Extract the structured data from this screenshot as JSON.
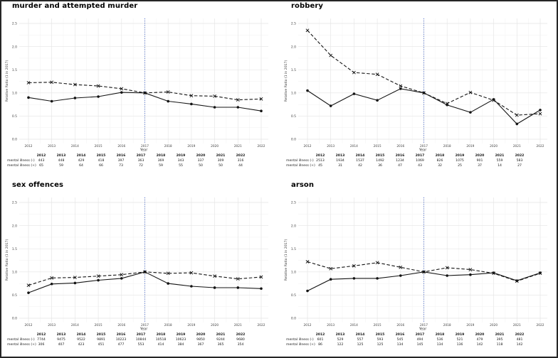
{
  "style": {
    "background": "#ffffff",
    "frame_border": "#262626",
    "line_color": "#141414",
    "vline_color": "#4466cc",
    "grid_major": "#e4e4e4",
    "grid_minor": "#f1f1f1",
    "tick_text": "#3d3d3d"
  },
  "chart_data": [
    {
      "type": "line",
      "title": "murder and attempted murder",
      "xlabel": "Year",
      "ylabel": "Relative Ratio (1 in 2017)",
      "ylim": [
        0,
        2.5
      ],
      "y_ticks": [
        0.0,
        0.5,
        1.0,
        1.5,
        2.0,
        2.5
      ],
      "x": [
        2012,
        2013,
        2014,
        2015,
        2016,
        2017,
        2018,
        2019,
        2020,
        2021,
        2022
      ],
      "reference_line_x": 2017,
      "grid": true,
      "legend": "none",
      "series": [
        {
          "name": "mental illness (-)",
          "style": "dashed",
          "marker": "x",
          "values": [
            1.22,
            1.23,
            1.18,
            1.15,
            1.09,
            1.0,
            1.02,
            0.94,
            0.93,
            0.85,
            0.87
          ]
        },
        {
          "name": "mental illness (+)",
          "style": "solid",
          "marker": "dot",
          "values": [
            0.9,
            0.82,
            0.89,
            0.92,
            1.01,
            1.0,
            0.82,
            0.76,
            0.69,
            0.69,
            0.61
          ]
        }
      ],
      "table": {
        "years": [
          2012,
          2013,
          2014,
          2015,
          2016,
          2017,
          2018,
          2019,
          2020,
          2021,
          2022
        ],
        "rows": [
          {
            "label": "mental illness (-)",
            "values": [
              443,
              448,
              429,
              418,
              397,
              363,
              369,
              343,
              337,
              309,
              316
            ]
          },
          {
            "label": "mental illness (+)",
            "values": [
              65,
              59,
              64,
              66,
              73,
              72,
              59,
              55,
              50,
              50,
              44
            ]
          }
        ]
      }
    },
    {
      "type": "line",
      "title": "robbery",
      "xlabel": "Year",
      "ylabel": "Relative Ratio (1 in 2017)",
      "ylim": [
        0,
        2.5
      ],
      "y_ticks": [
        0.0,
        0.5,
        1.0,
        1.5,
        2.0,
        2.5
      ],
      "x": [
        2012,
        2013,
        2014,
        2015,
        2016,
        2017,
        2018,
        2019,
        2020,
        2021,
        2022
      ],
      "reference_line_x": 2017,
      "grid": true,
      "legend": "none",
      "series": [
        {
          "name": "mental illness (-)",
          "style": "dashed",
          "marker": "x",
          "values": [
            2.35,
            1.81,
            1.44,
            1.4,
            1.15,
            1.0,
            0.77,
            1.01,
            0.84,
            0.52,
            0.55
          ]
        },
        {
          "name": "mental illness (+)",
          "style": "solid",
          "marker": "dot",
          "values": [
            1.05,
            0.72,
            0.98,
            0.84,
            1.09,
            1.0,
            0.74,
            0.58,
            0.86,
            0.33,
            0.63
          ]
        }
      ],
      "table": {
        "years": [
          2012,
          2013,
          2014,
          2015,
          2016,
          2017,
          2018,
          2019,
          2020,
          2021,
          2022
        ],
        "rows": [
          {
            "label": "mental illness (-)",
            "values": [
              2513,
              1934,
              1537,
              1492,
              1234,
              1069,
              826,
              1075,
              901,
              559,
              583
            ]
          },
          {
            "label": "mental illness (+)",
            "values": [
              45,
              31,
              42,
              36,
              47,
              43,
              32,
              25,
              37,
              14,
              27
            ]
          }
        ]
      }
    },
    {
      "type": "line",
      "title": "sex offences",
      "xlabel": "Year",
      "ylabel": "Relative Ratio (1 in 2017)",
      "ylim": [
        0,
        2.5
      ],
      "y_ticks": [
        0.0,
        0.5,
        1.0,
        1.5,
        2.0,
        2.5
      ],
      "x": [
        2012,
        2013,
        2014,
        2015,
        2016,
        2017,
        2018,
        2019,
        2020,
        2021,
        2022
      ],
      "reference_line_x": 2017,
      "grid": true,
      "legend": "none",
      "series": [
        {
          "name": "mental illness (-)",
          "style": "dashed",
          "marker": "x",
          "values": [
            0.71,
            0.87,
            0.88,
            0.91,
            0.94,
            1.0,
            0.97,
            0.98,
            0.91,
            0.85,
            0.89
          ]
        },
        {
          "name": "mental illness (+)",
          "style": "solid",
          "marker": "dot",
          "values": [
            0.55,
            0.74,
            0.76,
            0.82,
            0.86,
            1.0,
            0.75,
            0.69,
            0.66,
            0.66,
            0.64
          ]
        }
      ],
      "table": {
        "years": [
          2012,
          2013,
          2014,
          2015,
          2016,
          2017,
          2018,
          2019,
          2020,
          2021,
          2022
        ],
        "rows": [
          {
            "label": "mental illness (-)",
            "values": [
              7744,
              9475,
              9522,
              9891,
              10223,
              10844,
              10518,
              10623,
              9850,
              9244,
              9680
            ]
          },
          {
            "label": "mental illness (+)",
            "values": [
              306,
              407,
              423,
              451,
              477,
              553,
              414,
              384,
              367,
              365,
              354
            ]
          }
        ]
      }
    },
    {
      "type": "line",
      "title": "arson",
      "xlabel": "Year",
      "ylabel": "Relative Ratio (1 in 2017)",
      "ylim": [
        0,
        2.5
      ],
      "y_ticks": [
        0.0,
        0.5,
        1.0,
        1.5,
        2.0,
        2.5
      ],
      "x": [
        2012,
        2013,
        2014,
        2015,
        2016,
        2017,
        2018,
        2019,
        2020,
        2021,
        2022
      ],
      "reference_line_x": 2017,
      "grid": true,
      "legend": "none",
      "series": [
        {
          "name": "mental illness (-)",
          "style": "dashed",
          "marker": "x",
          "values": [
            1.22,
            1.07,
            1.13,
            1.2,
            1.1,
            1.0,
            1.09,
            1.05,
            0.97,
            0.8,
            0.97
          ]
        },
        {
          "name": "mental illness (+)",
          "style": "solid",
          "marker": "dot",
          "values": [
            0.59,
            0.84,
            0.86,
            0.86,
            0.92,
            1.0,
            0.92,
            0.94,
            0.98,
            0.81,
            0.98
          ]
        }
      ],
      "table": {
        "years": [
          2012,
          2013,
          2014,
          2015,
          2016,
          2017,
          2018,
          2019,
          2020,
          2021,
          2022
        ],
        "rows": [
          {
            "label": "mental illness (-)",
            "values": [
              601,
              529,
              557,
              593,
              545,
              494,
              536,
              521,
              479,
              395,
              481
            ]
          },
          {
            "label": "mental illness (+)",
            "values": [
              86,
              122,
              125,
              125,
              134,
              145,
              134,
              136,
              142,
              118,
              142
            ]
          }
        ]
      }
    }
  ]
}
